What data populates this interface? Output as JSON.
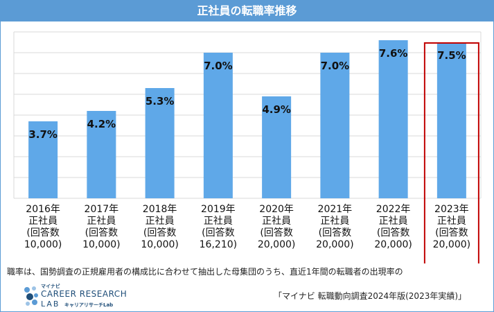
{
  "chart_data": {
    "type": "bar",
    "title": "正社員の転職率推移",
    "categories": [
      [
        "2016年",
        "正社員",
        "(回答数",
        "10,000)"
      ],
      [
        "2017年",
        "正社員",
        "(回答数",
        "10,000)"
      ],
      [
        "2018年",
        "正社員",
        "(回答数",
        "10,000)"
      ],
      [
        "2019年",
        "正社員",
        "(回答数",
        "16,210)"
      ],
      [
        "2020年",
        "正社員",
        "(回答数",
        "20,000)"
      ],
      [
        "2021年",
        "正社員",
        "(回答数",
        "20,000)"
      ],
      [
        "2022年",
        "正社員",
        "(回答数",
        "20,000)"
      ],
      [
        "2023年",
        "正社員",
        "(回答数",
        "20,000)"
      ]
    ],
    "values": [
      3.7,
      4.2,
      5.3,
      7.0,
      4.9,
      7.0,
      7.6,
      7.5
    ],
    "data_labels": [
      "3.7%",
      "4.2%",
      "5.3%",
      "7.0%",
      "4.9%",
      "7.0%",
      "7.6%",
      "7.5%"
    ],
    "ylim": [
      0,
      8
    ],
    "yticks": [
      0,
      1,
      2,
      3,
      4,
      5,
      6,
      7,
      8
    ],
    "grid": true,
    "highlight_index": 7,
    "bar_color": "#5fa8e8",
    "highlight_color": "#c00000",
    "grid_color": "#d9d9d9"
  },
  "footnote": "職率は、国勢調査の正規雇用者の構成比に合わせて抽出した母集団のうち、直近1年間の転職者の出現率の",
  "source": "「マイナビ 転職動向調査2024年版(2023年実績)」",
  "logo": {
    "small_text": "マイナビ",
    "main_text": "CAREER RESEARCH",
    "lab_text": "LAB",
    "sub_text": "キャリアリサーチLab",
    "color": "#1f4e79"
  },
  "header_color": "#5b9bd5"
}
